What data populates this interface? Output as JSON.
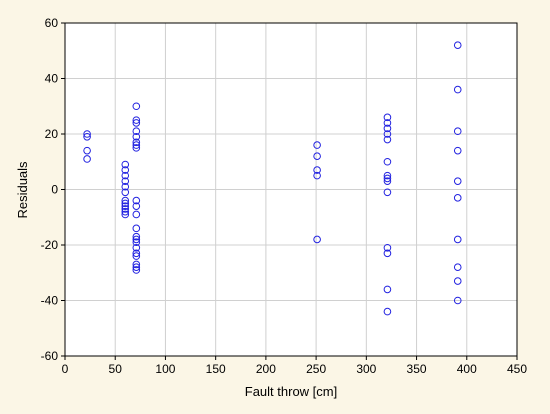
{
  "chart_data": {
    "type": "scatter",
    "title": "",
    "xlabel": "Fault throw [cm]",
    "ylabel": "Residuals",
    "xlim": [
      0,
      450
    ],
    "ylim": [
      -60,
      60
    ],
    "xticks": [
      0,
      50,
      100,
      150,
      200,
      250,
      300,
      350,
      400,
      450
    ],
    "yticks": [
      -60,
      -40,
      -20,
      0,
      20,
      40,
      60
    ],
    "grid": true,
    "legend": "none",
    "colors": {
      "marker": "#2323e0",
      "grid": "#d0d0d0",
      "background": "#fbf6e6",
      "plot_area": "#ffffff"
    },
    "series": [
      {
        "marker": "open-circle",
        "points": [
          [
            22,
            20
          ],
          [
            22,
            19
          ],
          [
            22,
            14
          ],
          [
            22,
            11
          ],
          [
            60,
            9
          ],
          [
            60,
            7
          ],
          [
            60,
            5
          ],
          [
            60,
            3
          ],
          [
            60,
            1
          ],
          [
            60,
            -1
          ],
          [
            60,
            -4
          ],
          [
            60,
            -5
          ],
          [
            60,
            -6
          ],
          [
            60,
            -7
          ],
          [
            60,
            -8
          ],
          [
            60,
            -9
          ],
          [
            71,
            30
          ],
          [
            71,
            25
          ],
          [
            71,
            24
          ],
          [
            71,
            21
          ],
          [
            71,
            19
          ],
          [
            71,
            17
          ],
          [
            71,
            16
          ],
          [
            71,
            15
          ],
          [
            71,
            -4
          ],
          [
            71,
            -6
          ],
          [
            71,
            -9
          ],
          [
            71,
            -14
          ],
          [
            71,
            -17
          ],
          [
            71,
            -18
          ],
          [
            71,
            -19
          ],
          [
            71,
            -21
          ],
          [
            71,
            -23
          ],
          [
            71,
            -24
          ],
          [
            71,
            -27
          ],
          [
            71,
            -28
          ],
          [
            71,
            -29
          ],
          [
            251,
            16
          ],
          [
            251,
            12
          ],
          [
            251,
            7
          ],
          [
            251,
            5
          ],
          [
            251,
            -18
          ],
          [
            321,
            26
          ],
          [
            321,
            24
          ],
          [
            321,
            22
          ],
          [
            321,
            20
          ],
          [
            321,
            18
          ],
          [
            321,
            10
          ],
          [
            321,
            5
          ],
          [
            321,
            4
          ],
          [
            321,
            3
          ],
          [
            321,
            -1
          ],
          [
            321,
            -21
          ],
          [
            321,
            -23
          ],
          [
            321,
            -36
          ],
          [
            321,
            -44
          ],
          [
            391,
            52
          ],
          [
            391,
            36
          ],
          [
            391,
            21
          ],
          [
            391,
            14
          ],
          [
            391,
            3
          ],
          [
            391,
            -3
          ],
          [
            391,
            -18
          ],
          [
            391,
            -28
          ],
          [
            391,
            -33
          ],
          [
            391,
            -40
          ]
        ]
      }
    ]
  }
}
